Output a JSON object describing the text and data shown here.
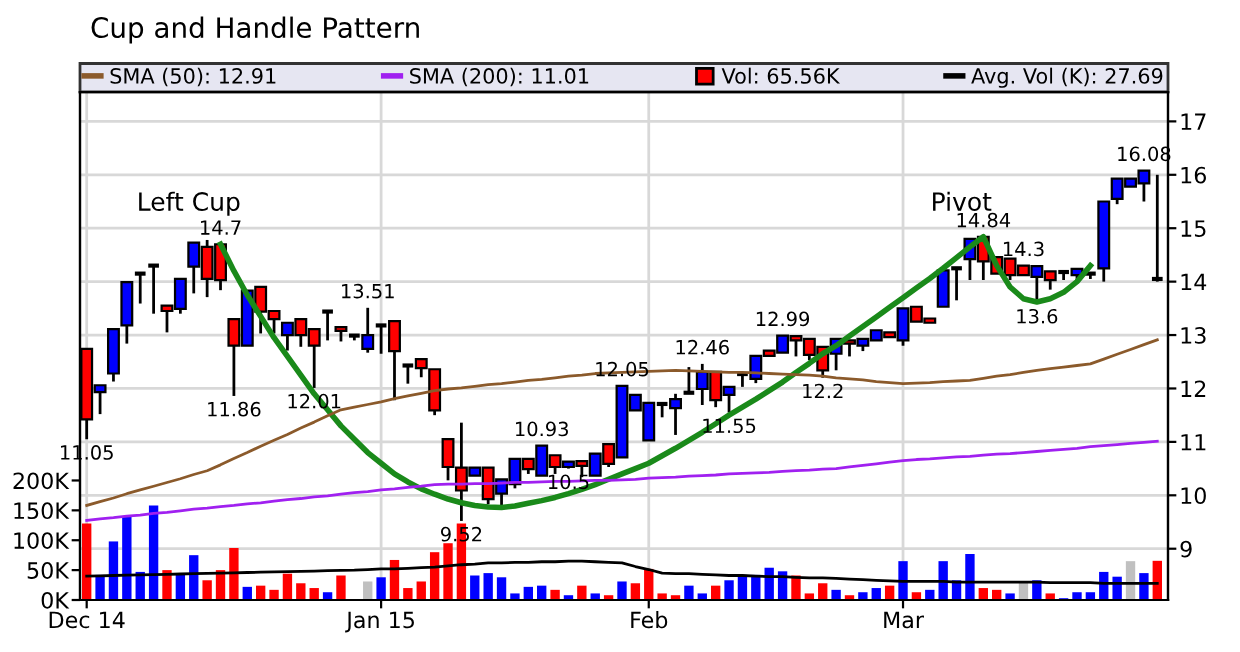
{
  "chart_data": {
    "type": "candlestick",
    "title": "Cup and Handle Pattern",
    "categories": [
      "Dec 14",
      null,
      null,
      null,
      null,
      null,
      null,
      null,
      null,
      null,
      null,
      null,
      null,
      null,
      null,
      null,
      null,
      null,
      null,
      null,
      null,
      null,
      "Jan 15",
      null,
      null,
      null,
      null,
      null,
      null,
      null,
      null,
      null,
      null,
      null,
      null,
      null,
      null,
      null,
      null,
      null,
      null,
      null,
      "Feb",
      null,
      null,
      null,
      null,
      null,
      null,
      null,
      null,
      null,
      null,
      null,
      null,
      null,
      null,
      null,
      null,
      null,
      null,
      "Mar",
      null,
      null,
      null,
      null,
      null,
      null,
      null,
      null,
      null,
      null,
      null,
      null,
      null,
      null,
      null,
      null,
      null,
      null,
      null
    ],
    "ohlc": [
      [
        12.74,
        12.74,
        11.05,
        11.42
      ],
      [
        11.93,
        12.06,
        11.52,
        12.06
      ],
      [
        12.28,
        13.11,
        12.13,
        13.11
      ],
      [
        13.18,
        13.99,
        12.84,
        13.99
      ],
      [
        14.15,
        14.15,
        13.59,
        14.15
      ],
      [
        14.3,
        14.3,
        13.4,
        14.3
      ],
      [
        13.55,
        13.55,
        13.05,
        13.45
      ],
      [
        13.49,
        14.05,
        13.4,
        14.05
      ],
      [
        14.28,
        14.73,
        13.78,
        14.73
      ],
      [
        14.65,
        14.78,
        13.71,
        14.05
      ],
      [
        14.7,
        14.7,
        13.84,
        14.03
      ],
      [
        13.3,
        13.3,
        11.86,
        12.8
      ],
      [
        12.8,
        13.83,
        12.8,
        13.83
      ],
      [
        13.9,
        13.9,
        13.03,
        13.44
      ],
      [
        13.45,
        13.45,
        13.03,
        13.3
      ],
      [
        13.0,
        13.23,
        12.71,
        13.23
      ],
      [
        13.3,
        13.3,
        12.78,
        13.0
      ],
      [
        13.11,
        13.11,
        12.01,
        12.8
      ],
      [
        13.44,
        13.44,
        12.9,
        13.44
      ],
      [
        13.15,
        13.15,
        12.88,
        13.08
      ],
      [
        12.99,
        12.99,
        12.9,
        12.99
      ],
      [
        12.74,
        13.51,
        12.67,
        13.0
      ],
      [
        13.18,
        13.18,
        12.65,
        13.18
      ],
      [
        13.26,
        13.26,
        11.78,
        12.7
      ],
      [
        12.43,
        12.43,
        12.09,
        12.43
      ],
      [
        12.55,
        12.55,
        12.21,
        12.38
      ],
      [
        12.36,
        12.36,
        11.5,
        11.59
      ],
      [
        11.05,
        11.05,
        10.28,
        10.53
      ],
      [
        10.52,
        11.36,
        9.52,
        10.09
      ],
      [
        10.37,
        10.52,
        10.37,
        10.52
      ],
      [
        10.52,
        10.52,
        9.83,
        9.93
      ],
      [
        10.03,
        10.3,
        9.8,
        10.3
      ],
      [
        10.21,
        10.68,
        10.13,
        10.68
      ],
      [
        10.68,
        10.68,
        10.4,
        10.49
      ],
      [
        10.37,
        10.93,
        10.37,
        10.93
      ],
      [
        10.75,
        10.75,
        10.4,
        10.53
      ],
      [
        10.53,
        10.63,
        10.5,
        10.63
      ],
      [
        10.64,
        10.64,
        10.34,
        10.55
      ],
      [
        10.37,
        10.78,
        10.37,
        10.78
      ],
      [
        10.96,
        10.96,
        10.53,
        10.59
      ],
      [
        10.71,
        12.05,
        10.71,
        12.05
      ],
      [
        11.59,
        11.88,
        11.59,
        11.88
      ],
      [
        11.03,
        11.73,
        11.03,
        11.73
      ],
      [
        11.71,
        11.71,
        11.46,
        11.71
      ],
      [
        11.63,
        11.9,
        11.13,
        11.8
      ],
      [
        11.92,
        12.4,
        11.92,
        11.92
      ],
      [
        11.99,
        12.46,
        11.69,
        12.31
      ],
      [
        12.31,
        12.31,
        11.65,
        11.78
      ],
      [
        11.88,
        12.03,
        11.55,
        12.03
      ],
      [
        12.27,
        12.27,
        12.03,
        12.27
      ],
      [
        12.18,
        12.61,
        12.1,
        12.61
      ],
      [
        12.71,
        12.71,
        12.61,
        12.61
      ],
      [
        12.67,
        12.99,
        12.67,
        12.99
      ],
      [
        12.98,
        12.98,
        12.6,
        12.9
      ],
      [
        12.93,
        12.93,
        12.53,
        12.63
      ],
      [
        12.78,
        12.78,
        12.2,
        12.34
      ],
      [
        12.65,
        12.93,
        12.34,
        12.93
      ],
      [
        12.9,
        12.9,
        12.6,
        12.84
      ],
      [
        12.8,
        12.93,
        12.7,
        12.93
      ],
      [
        12.9,
        13.09,
        12.9,
        13.09
      ],
      [
        13.05,
        13.05,
        12.96,
        12.96
      ],
      [
        12.9,
        13.5,
        12.8,
        13.5
      ],
      [
        13.53,
        13.53,
        13.25,
        13.25
      ],
      [
        13.31,
        13.31,
        13.23,
        13.23
      ],
      [
        13.53,
        14.21,
        13.53,
        14.21
      ],
      [
        14.25,
        14.25,
        13.65,
        14.25
      ],
      [
        14.42,
        14.8,
        14.03,
        14.8
      ],
      [
        14.84,
        14.84,
        14.03,
        14.38
      ],
      [
        14.46,
        14.46,
        14.15,
        14.15
      ],
      [
        14.43,
        14.43,
        14.03,
        14.12
      ],
      [
        14.3,
        14.3,
        14.12,
        14.12
      ],
      [
        14.09,
        14.29,
        13.6,
        14.29
      ],
      [
        14.19,
        14.19,
        13.85,
        14.03
      ],
      [
        14.18,
        14.18,
        14.03,
        14.18
      ],
      [
        14.12,
        14.24,
        14.0,
        14.24
      ],
      [
        14.15,
        14.15,
        14.05,
        14.15
      ],
      [
        14.25,
        15.5,
        14.0,
        15.5
      ],
      [
        15.55,
        15.93,
        15.45,
        15.93
      ],
      [
        15.78,
        15.93,
        15.78,
        15.93
      ],
      [
        15.84,
        16.08,
        15.5,
        16.08
      ],
      [
        14.05,
        16.0,
        14.0,
        14.05
      ]
    ],
    "colors": [
      "#ff0000",
      "#0000ff",
      "#0000ff",
      "#0000ff",
      "#000000",
      "#000000",
      "#ff0000",
      "#0000ff",
      "#0000ff",
      "#ff0000",
      "#ff0000",
      "#ff0000",
      "#0000ff",
      "#ff0000",
      "#ff0000",
      "#0000ff",
      "#ff0000",
      "#ff0000",
      "#000000",
      "#ff0000",
      "#000000",
      "#0000ff",
      "#000000",
      "#ff0000",
      "#000000",
      "#ff0000",
      "#ff0000",
      "#ff0000",
      "#ff0000",
      "#0000ff",
      "#ff0000",
      "#0000ff",
      "#0000ff",
      "#ff0000",
      "#0000ff",
      "#ff0000",
      "#0000ff",
      "#ff0000",
      "#0000ff",
      "#ff0000",
      "#0000ff",
      "#0000ff",
      "#0000ff",
      "#000000",
      "#0000ff",
      "#000000",
      "#0000ff",
      "#ff0000",
      "#0000ff",
      "#000000",
      "#0000ff",
      "#ff0000",
      "#0000ff",
      "#ff0000",
      "#ff0000",
      "#ff0000",
      "#0000ff",
      "#ff0000",
      "#0000ff",
      "#0000ff",
      "#ff0000",
      "#0000ff",
      "#ff0000",
      "#ff0000",
      "#0000ff",
      "#000000",
      "#0000ff",
      "#ff0000",
      "#ff0000",
      "#ff0000",
      "#ff0000",
      "#0000ff",
      "#ff0000",
      "#000000",
      "#0000ff",
      "#000000",
      "#0000ff",
      "#0000ff",
      "#0000ff",
      "#0000ff",
      "#000000"
    ],
    "value_labels": [
      "11.05",
      null,
      null,
      null,
      null,
      null,
      null,
      null,
      null,
      null,
      "14.7",
      "11.86",
      null,
      null,
      null,
      null,
      null,
      "12.01",
      null,
      null,
      null,
      "13.51",
      null,
      null,
      null,
      null,
      null,
      null,
      "9.52",
      null,
      null,
      null,
      null,
      null,
      "10.93",
      null,
      "10.5",
      null,
      null,
      null,
      "12.05",
      null,
      null,
      null,
      null,
      null,
      "12.46",
      null,
      "11.55",
      null,
      null,
      null,
      "12.99",
      null,
      null,
      "12.2",
      null,
      null,
      null,
      null,
      null,
      null,
      null,
      null,
      null,
      null,
      null,
      "14.84",
      null,
      null,
      "14.3",
      "13.6",
      null,
      null,
      null,
      null,
      null,
      null,
      null,
      "16.08",
      null
    ],
    "ylim": [
      8.04,
      17.55
    ],
    "yticks": [
      9,
      10,
      11,
      12,
      13,
      14,
      15,
      16,
      17
    ],
    "y2lim": [
      0,
      850
    ],
    "y2ticks": [
      {
        "value": 0,
        "label": "0K"
      },
      {
        "value": 50,
        "label": "50K"
      },
      {
        "value": 100,
        "label": "100K"
      },
      {
        "value": 150,
        "label": "150K"
      },
      {
        "value": 200,
        "label": "200K"
      }
    ],
    "series": [
      {
        "type": "line",
        "name": "SMA (50): 12.91",
        "color": "#8b5a2b",
        "values": [
          9.81,
          9.88,
          9.95,
          10.03,
          10.1,
          10.17,
          10.24,
          10.31,
          10.39,
          10.46,
          10.57,
          10.69,
          10.8,
          10.92,
          11.03,
          11.14,
          11.26,
          11.37,
          11.49,
          11.6,
          11.65,
          11.7,
          11.75,
          11.81,
          11.86,
          11.91,
          11.96,
          11.99,
          12.01,
          12.04,
          12.07,
          12.09,
          12.12,
          12.15,
          12.17,
          12.2,
          12.23,
          12.25,
          12.28,
          12.29,
          12.3,
          12.31,
          12.32,
          12.33,
          12.34,
          12.33,
          12.32,
          12.31,
          12.3,
          12.3,
          12.29,
          12.28,
          12.27,
          12.26,
          12.25,
          12.23,
          12.2,
          12.18,
          12.16,
          12.13,
          12.11,
          12.09,
          12.1,
          12.11,
          12.13,
          12.14,
          12.15,
          12.19,
          12.23,
          12.26,
          12.3,
          12.34,
          12.37,
          12.4,
          12.43,
          12.46,
          12.55,
          12.64,
          12.73,
          12.82,
          12.91
        ]
      },
      {
        "type": "line",
        "name": "SMA (200): 11.01",
        "color": "#a020f0",
        "values": [
          9.53,
          9.56,
          9.58,
          9.61,
          9.63,
          9.66,
          9.68,
          9.71,
          9.74,
          9.76,
          9.79,
          9.81,
          9.84,
          9.86,
          9.89,
          9.92,
          9.94,
          9.97,
          9.99,
          10.02,
          10.05,
          10.07,
          10.1,
          10.12,
          10.15,
          10.17,
          10.2,
          10.21,
          10.21,
          10.22,
          10.22,
          10.23,
          10.24,
          10.24,
          10.25,
          10.26,
          10.26,
          10.27,
          10.28,
          10.28,
          10.29,
          10.3,
          10.32,
          10.33,
          10.34,
          10.36,
          10.37,
          10.38,
          10.4,
          10.41,
          10.42,
          10.43,
          10.45,
          10.46,
          10.47,
          10.49,
          10.5,
          10.53,
          10.56,
          10.59,
          10.62,
          10.65,
          10.67,
          10.68,
          10.7,
          10.72,
          10.73,
          10.75,
          10.77,
          10.78,
          10.8,
          10.82,
          10.84,
          10.86,
          10.88,
          10.91,
          10.93,
          10.95,
          10.97,
          10.99,
          11.01
        ]
      },
      {
        "type": "bar",
        "axis": "y2",
        "name": "Vol: 65.56K",
        "color": "#ff0000",
        "values": [
          128,
          42,
          98,
          140,
          47,
          158,
          50,
          42,
          75,
          33,
          50,
          87,
          22,
          24,
          17,
          44,
          28,
          20,
          13,
          41,
          null,
          31,
          38,
          67,
          20,
          31,
          80,
          95,
          128,
          41,
          45,
          38,
          11,
          22,
          24,
          17,
          8,
          24,
          11,
          8,
          31,
          28,
          52,
          11,
          8,
          24,
          11,
          24,
          33,
          42,
          42,
          54,
          48,
          41,
          11,
          28,
          17,
          8,
          13,
          20,
          24,
          65,
          13,
          17,
          65,
          33,
          77,
          20,
          17,
          11,
          31,
          33,
          11,
          3,
          13,
          13,
          47,
          39,
          65,
          45,
          65.56
        ],
        "colors": [
          "#ff0000",
          "#0000ff",
          "#0000ff",
          "#0000ff",
          "#0000ff",
          "#0000ff",
          "#ff0000",
          "#0000ff",
          "#0000ff",
          "#ff0000",
          "#ff0000",
          "#ff0000",
          "#0000ff",
          "#ff0000",
          "#ff0000",
          "#ff0000",
          "#ff0000",
          "#ff0000",
          "#0000ff",
          "#ff0000",
          "#0000ff",
          "#c0c0c0",
          "#0000ff",
          "#ff0000",
          "#ff0000",
          "#ff0000",
          "#ff0000",
          "#ff0000",
          "#ff0000",
          "#0000ff",
          "#0000ff",
          "#0000ff",
          "#0000ff",
          "#0000ff",
          "#0000ff",
          "#ff0000",
          "#0000ff",
          "#ff0000",
          "#0000ff",
          "#ff0000",
          "#0000ff",
          "#ff0000",
          "#ff0000",
          "#ff0000",
          "#ff0000",
          "#0000ff",
          "#0000ff",
          "#ff0000",
          "#0000ff",
          "#0000ff",
          "#0000ff",
          "#0000ff",
          "#0000ff",
          "#ff0000",
          "#ff0000",
          "#ff0000",
          "#0000ff",
          "#ff0000",
          "#0000ff",
          "#0000ff",
          "#ff0000",
          "#0000ff",
          "#ff0000",
          "#0000ff",
          "#0000ff",
          "#0000ff",
          "#0000ff",
          "#ff0000",
          "#ff0000",
          "#0000ff",
          "#c0c0c0",
          "#0000ff",
          "#ff0000",
          "#0000ff",
          "#0000ff",
          "#0000ff",
          "#0000ff",
          "#0000ff",
          "#c0c0c0",
          "#0000ff",
          "#ff0000"
        ]
      },
      {
        "type": "line",
        "axis": "y2",
        "name": "Avg. Vol (K): 27.69",
        "color": "#000000",
        "values": [
          40,
          40.5,
          41,
          41.5,
          42,
          42.5,
          43,
          43.5,
          44,
          44.5,
          45,
          45.5,
          46,
          46.5,
          47,
          47.5,
          48,
          48.5,
          49,
          49.5,
          50,
          51,
          52,
          52,
          53,
          54,
          55,
          57,
          59,
          60,
          62,
          62,
          63,
          63,
          64,
          64,
          65,
          65,
          64,
          63,
          62,
          56,
          51,
          45,
          44,
          44,
          43,
          42,
          41,
          41,
          40,
          39,
          39,
          38,
          37,
          37,
          36,
          35,
          34,
          33,
          32,
          31,
          31,
          31,
          31,
          30,
          30,
          30,
          30,
          30,
          30,
          30,
          29,
          29,
          29,
          29,
          28,
          28,
          28,
          28,
          27.69
        ]
      },
      {
        "type": "line",
        "color": "#1a8a1a",
        "values": [
          null,
          null,
          null,
          null,
          null,
          null,
          null,
          null,
          null,
          null,
          14.7,
          14.2,
          13.75,
          13.35,
          12.95,
          12.6,
          12.25,
          11.9,
          11.6,
          11.3,
          11.05,
          10.8,
          10.6,
          10.4,
          10.25,
          10.12,
          10.02,
          9.93,
          9.86,
          9.81,
          9.78,
          9.77,
          9.8,
          9.85,
          9.9,
          9.96,
          10.03,
          10.11,
          10.2,
          10.3,
          10.4,
          10.5,
          10.6,
          10.74,
          10.88,
          11.03,
          11.18,
          11.34,
          11.5,
          11.65,
          11.8,
          11.96,
          12.12,
          12.3,
          12.47,
          12.65,
          12.8,
          12.98,
          13.16,
          13.34,
          13.52,
          13.7,
          13.88,
          14.06,
          14.25,
          14.45,
          14.65,
          14.84,
          14.3,
          13.9,
          13.68,
          13.62,
          13.68,
          13.8,
          14.0,
          14.3,
          null,
          null,
          null,
          null,
          null
        ]
      }
    ],
    "annotations": [
      "Left Cup",
      "Pivot"
    ],
    "legend": "top",
    "grid": true
  }
}
